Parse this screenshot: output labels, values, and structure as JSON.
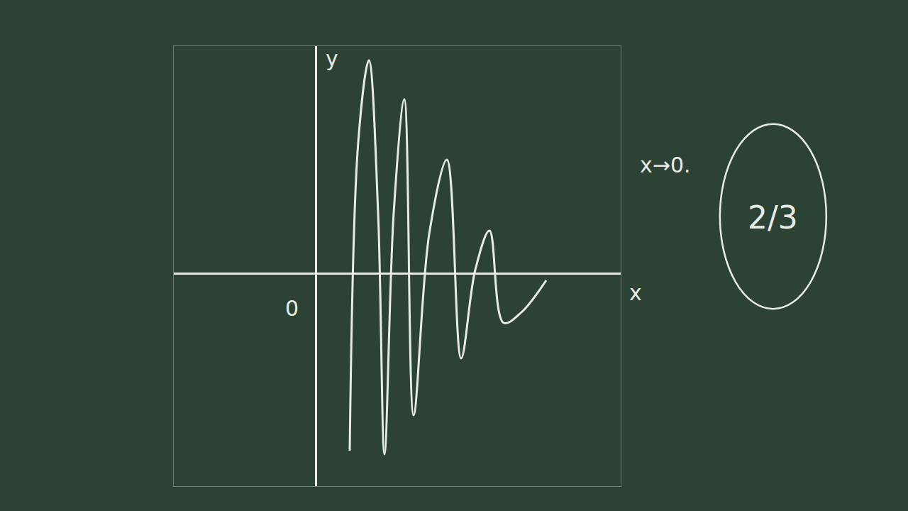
{
  "chart_data": {
    "type": "line",
    "x_label": "x",
    "y_label": "y",
    "origin_label": "0",
    "annotations": [
      "x→0.",
      "2/3"
    ],
    "x": [
      0.48,
      0.6,
      0.75,
      0.88,
      0.97,
      1.1,
      1.25,
      1.38,
      1.6,
      1.85,
      2.05,
      2.25,
      2.45,
      2.65,
      2.9,
      3.25
    ],
    "values": [
      -2.5,
      1.85,
      3.0,
      0.85,
      -2.55,
      0.85,
      2.45,
      -2.0,
      0.55,
      1.6,
      -1.2,
      0.05,
      0.6,
      -0.7,
      -0.55,
      -0.1
    ],
    "color": "#e6ebe6",
    "line_style": "solid",
    "xlim": [
      -2,
      4.3
    ],
    "ylim": [
      -3,
      3.2
    ],
    "xticks": [],
    "yticks": [],
    "tick_labels": false,
    "grid": false
  }
}
